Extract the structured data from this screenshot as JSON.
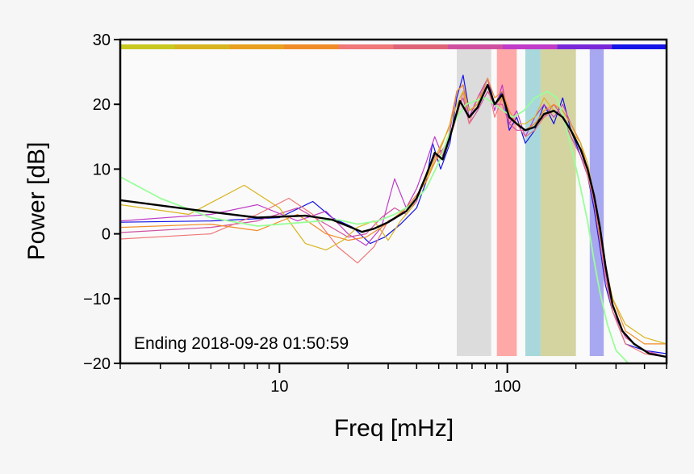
{
  "chart_data": {
    "type": "line",
    "title": "",
    "xlabel": "Freq [mHz]",
    "ylabel": "Power [dB]",
    "x_scale": "log",
    "xlim": [
      2,
      500
    ],
    "ylim": [
      -20,
      30
    ],
    "x_tick_labels": [
      {
        "value": 10,
        "label": "10"
      },
      {
        "value": 100,
        "label": "100"
      }
    ],
    "y_ticks": [
      30,
      20,
      10,
      0,
      -10,
      -20
    ],
    "y_tick_labels": [
      "30",
      "20",
      "10",
      "0",
      "−10",
      "−20"
    ],
    "grid": false,
    "annotation": "Ending 2018-09-28 01:50:59",
    "top_color_strip": [
      "#c8c81e",
      "#d8b41e",
      "#e8a01e",
      "#f08c28",
      "#f07878",
      "#e06478",
      "#d050a0",
      "#c03cc8",
      "#7828d8",
      "#1414e6"
    ],
    "bands": [
      {
        "from": 60,
        "to": 85,
        "color": "#dcdcdc"
      },
      {
        "from": 90,
        "to": 110,
        "color": "#ffa8a8"
      },
      {
        "from": 120,
        "to": 140,
        "color": "#a8d8dc"
      },
      {
        "from": 140,
        "to": 200,
        "color": "#d4d4a0"
      },
      {
        "from": 230,
        "to": 265,
        "color": "#a8a8f0"
      }
    ],
    "series": [
      {
        "color": "#000000",
        "width": 2.4,
        "points": [
          [
            2,
            5.2
          ],
          [
            4,
            3.8
          ],
          [
            8,
            2.5
          ],
          [
            13,
            2.8
          ],
          [
            17,
            2.2
          ],
          [
            20,
            1.2
          ],
          [
            23,
            0.3
          ],
          [
            26,
            0.8
          ],
          [
            30,
            1.8
          ],
          [
            36,
            3.5
          ],
          [
            40,
            5.5
          ],
          [
            44,
            9
          ],
          [
            48,
            12.5
          ],
          [
            52,
            11.5
          ],
          [
            56,
            15
          ],
          [
            62,
            20.5
          ],
          [
            68,
            18
          ],
          [
            74,
            19.5
          ],
          [
            82,
            23
          ],
          [
            88,
            20
          ],
          [
            95,
            21.5
          ],
          [
            102,
            18
          ],
          [
            110,
            17
          ],
          [
            120,
            16
          ],
          [
            132,
            16.5
          ],
          [
            145,
            18.5
          ],
          [
            160,
            19
          ],
          [
            175,
            18
          ],
          [
            190,
            16
          ],
          [
            210,
            13
          ],
          [
            225,
            10
          ],
          [
            240,
            6
          ],
          [
            255,
            1
          ],
          [
            270,
            -5
          ],
          [
            290,
            -11
          ],
          [
            320,
            -15
          ],
          [
            360,
            -17
          ],
          [
            420,
            -18.5
          ],
          [
            500,
            -19
          ]
        ]
      },
      {
        "color": "#1414e6",
        "width": 1.2,
        "points": [
          [
            2,
            1.8
          ],
          [
            5,
            2
          ],
          [
            10,
            2.5
          ],
          [
            14,
            5
          ],
          [
            17,
            2.5
          ],
          [
            21,
            1
          ],
          [
            25,
            -1.5
          ],
          [
            29,
            -0.5
          ],
          [
            34,
            1.5
          ],
          [
            40,
            4
          ],
          [
            44,
            8
          ],
          [
            47,
            14
          ],
          [
            51,
            10
          ],
          [
            56,
            14
          ],
          [
            60,
            21
          ],
          [
            64,
            24.5
          ],
          [
            68,
            19
          ],
          [
            74,
            20
          ],
          [
            82,
            24
          ],
          [
            88,
            20
          ],
          [
            95,
            22
          ],
          [
            102,
            16
          ],
          [
            110,
            18
          ],
          [
            120,
            14
          ],
          [
            132,
            16
          ],
          [
            145,
            20
          ],
          [
            160,
            17
          ],
          [
            175,
            21
          ],
          [
            190,
            16
          ],
          [
            210,
            12
          ],
          [
            225,
            9
          ],
          [
            240,
            4
          ],
          [
            255,
            -2
          ],
          [
            270,
            -8
          ],
          [
            290,
            -12
          ],
          [
            330,
            -17
          ],
          [
            400,
            -18
          ],
          [
            500,
            -18.5
          ]
        ]
      },
      {
        "color": "#c03cc8",
        "width": 1.2,
        "points": [
          [
            2,
            2
          ],
          [
            5,
            3
          ],
          [
            8,
            4.5
          ],
          [
            12,
            2
          ],
          [
            16,
            3.5
          ],
          [
            20,
            0
          ],
          [
            24,
            -1.8
          ],
          [
            28,
            1
          ],
          [
            32,
            8.5
          ],
          [
            36,
            4
          ],
          [
            40,
            7
          ],
          [
            44,
            11
          ],
          [
            48,
            15
          ],
          [
            52,
            12
          ],
          [
            56,
            16
          ],
          [
            60,
            22
          ],
          [
            64,
            23
          ],
          [
            68,
            18
          ],
          [
            74,
            21
          ],
          [
            82,
            24
          ],
          [
            88,
            19
          ],
          [
            95,
            23
          ],
          [
            102,
            17
          ],
          [
            110,
            19
          ],
          [
            120,
            15
          ],
          [
            132,
            18
          ],
          [
            145,
            20
          ],
          [
            160,
            18
          ],
          [
            175,
            20
          ],
          [
            190,
            17
          ],
          [
            210,
            14
          ],
          [
            225,
            10
          ],
          [
            240,
            5
          ],
          [
            255,
            0
          ],
          [
            270,
            -6
          ],
          [
            290,
            -12
          ],
          [
            330,
            -16
          ],
          [
            400,
            -18
          ],
          [
            500,
            -19
          ]
        ]
      },
      {
        "color": "#d050a0",
        "width": 1.2,
        "points": [
          [
            2,
            0.2
          ],
          [
            5,
            1
          ],
          [
            8,
            2
          ],
          [
            12,
            4
          ],
          [
            16,
            1.5
          ],
          [
            20,
            -0.5
          ],
          [
            24,
            0
          ],
          [
            28,
            2.5
          ],
          [
            32,
            4
          ],
          [
            36,
            3
          ],
          [
            40,
            5
          ],
          [
            44,
            9
          ],
          [
            48,
            12
          ],
          [
            52,
            13
          ],
          [
            56,
            15
          ],
          [
            60,
            19
          ],
          [
            64,
            21
          ],
          [
            68,
            17
          ],
          [
            74,
            19
          ],
          [
            82,
            22
          ],
          [
            88,
            20
          ],
          [
            95,
            20
          ],
          [
            102,
            17
          ],
          [
            110,
            16
          ],
          [
            120,
            16
          ],
          [
            132,
            17
          ],
          [
            145,
            18
          ],
          [
            160,
            20
          ],
          [
            175,
            18
          ],
          [
            190,
            15
          ],
          [
            210,
            12
          ],
          [
            225,
            9
          ],
          [
            240,
            5
          ],
          [
            255,
            0
          ],
          [
            270,
            -6
          ],
          [
            290,
            -11
          ],
          [
            330,
            -16
          ],
          [
            400,
            -18
          ],
          [
            500,
            -19
          ]
        ]
      },
      {
        "color": "#f07878",
        "width": 1.2,
        "points": [
          [
            2,
            -0.8
          ],
          [
            5,
            0
          ],
          [
            8,
            3
          ],
          [
            11,
            5.5
          ],
          [
            14,
            3
          ],
          [
            18,
            -2
          ],
          [
            22,
            -4.5
          ],
          [
            26,
            -2
          ],
          [
            30,
            2
          ],
          [
            34,
            3
          ],
          [
            38,
            5
          ],
          [
            42,
            7
          ],
          [
            46,
            10
          ],
          [
            50,
            12
          ],
          [
            55,
            14
          ],
          [
            60,
            18
          ],
          [
            64,
            22
          ],
          [
            68,
            17
          ],
          [
            74,
            21
          ],
          [
            82,
            23
          ],
          [
            88,
            18
          ],
          [
            95,
            21
          ],
          [
            102,
            18
          ],
          [
            110,
            17
          ],
          [
            120,
            15
          ],
          [
            132,
            16
          ],
          [
            145,
            18
          ],
          [
            160,
            19
          ],
          [
            175,
            18
          ],
          [
            190,
            16
          ],
          [
            210,
            13
          ],
          [
            225,
            9
          ],
          [
            240,
            5
          ],
          [
            255,
            -1
          ],
          [
            270,
            -7
          ],
          [
            290,
            -12
          ],
          [
            330,
            -17
          ],
          [
            400,
            -18.5
          ],
          [
            500,
            -19
          ]
        ]
      },
      {
        "color": "#f08c28",
        "width": 1.2,
        "points": [
          [
            2,
            1
          ],
          [
            5,
            1.5
          ],
          [
            8,
            0.5
          ],
          [
            12,
            3
          ],
          [
            16,
            0
          ],
          [
            20,
            -1
          ],
          [
            24,
            -0.5
          ],
          [
            28,
            1
          ],
          [
            32,
            2.5
          ],
          [
            36,
            4
          ],
          [
            40,
            6
          ],
          [
            44,
            8
          ],
          [
            48,
            11
          ],
          [
            52,
            14
          ],
          [
            56,
            17
          ],
          [
            60,
            22
          ],
          [
            64,
            23
          ],
          [
            68,
            19
          ],
          [
            74,
            20
          ],
          [
            82,
            24
          ],
          [
            88,
            21
          ],
          [
            95,
            22
          ],
          [
            102,
            19
          ],
          [
            110,
            17
          ],
          [
            120,
            16
          ],
          [
            132,
            17
          ],
          [
            145,
            19
          ],
          [
            160,
            20
          ],
          [
            175,
            19
          ],
          [
            190,
            17
          ],
          [
            210,
            14
          ],
          [
            225,
            10
          ],
          [
            240,
            6
          ],
          [
            255,
            0
          ],
          [
            270,
            -5
          ],
          [
            290,
            -10
          ],
          [
            330,
            -15
          ],
          [
            400,
            -17
          ],
          [
            500,
            -17
          ]
        ]
      },
      {
        "color": "#d8b41e",
        "width": 1.2,
        "points": [
          [
            2,
            4.5
          ],
          [
            4,
            3
          ],
          [
            7,
            7.5
          ],
          [
            10,
            4
          ],
          [
            13,
            -1.5
          ],
          [
            16,
            -2.5
          ],
          [
            19,
            -1
          ],
          [
            22,
            1
          ],
          [
            26,
            2
          ],
          [
            30,
            -1
          ],
          [
            34,
            2
          ],
          [
            38,
            4
          ],
          [
            42,
            7
          ],
          [
            46,
            10
          ],
          [
            50,
            13
          ],
          [
            55,
            16
          ],
          [
            60,
            20
          ],
          [
            64,
            22
          ],
          [
            68,
            19
          ],
          [
            74,
            20
          ],
          [
            82,
            23
          ],
          [
            88,
            20
          ],
          [
            95,
            21
          ],
          [
            102,
            18
          ],
          [
            110,
            17
          ],
          [
            120,
            17
          ],
          [
            132,
            18
          ],
          [
            145,
            21
          ],
          [
            160,
            19
          ],
          [
            175,
            18
          ],
          [
            190,
            16
          ],
          [
            210,
            14
          ],
          [
            225,
            11
          ],
          [
            240,
            6
          ],
          [
            255,
            1
          ],
          [
            270,
            -5
          ],
          [
            290,
            -10
          ],
          [
            330,
            -14
          ],
          [
            400,
            -16
          ],
          [
            500,
            -17
          ]
        ]
      },
      {
        "color": "#98ff98",
        "width": 1.8,
        "points": [
          [
            2,
            8.8
          ],
          [
            3,
            5.5
          ],
          [
            5,
            2.5
          ],
          [
            8,
            1.2
          ],
          [
            13,
            1.8
          ],
          [
            18,
            2.2
          ],
          [
            22,
            1.5
          ],
          [
            27,
            2
          ],
          [
            32,
            3
          ],
          [
            38,
            4.5
          ],
          [
            44,
            7
          ],
          [
            50,
            11
          ],
          [
            55,
            15
          ],
          [
            60,
            18
          ],
          [
            66,
            20
          ],
          [
            72,
            20.5
          ],
          [
            80,
            21
          ],
          [
            88,
            20
          ],
          [
            96,
            19
          ],
          [
            106,
            18
          ],
          [
            118,
            19
          ],
          [
            132,
            21
          ],
          [
            150,
            22
          ],
          [
            165,
            21
          ],
          [
            180,
            17
          ],
          [
            195,
            12
          ],
          [
            210,
            7
          ],
          [
            225,
            2
          ],
          [
            240,
            -4
          ],
          [
            255,
            -9
          ],
          [
            275,
            -14
          ],
          [
            300,
            -18
          ],
          [
            340,
            -20
          ],
          [
            500,
            -20
          ]
        ]
      }
    ]
  }
}
